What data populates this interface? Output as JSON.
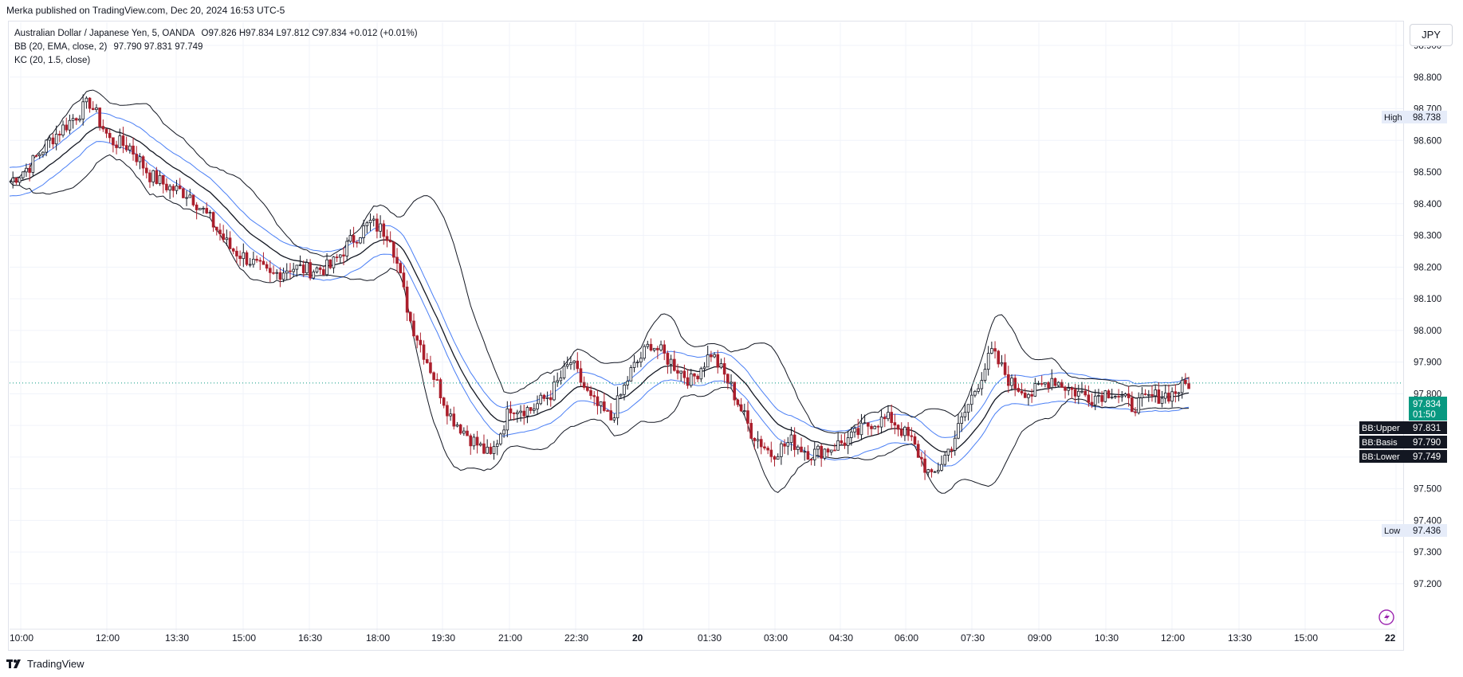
{
  "header": {
    "published": "Merka published on TradingView.com, Dec 20, 2024 16:53 UTC-5"
  },
  "legend": {
    "symbol": "Australian Dollar / Japanese Yen, 5, OANDA",
    "ohlc": "O97.826 H97.834 L97.812 C97.834 +0.012 (+0.01%)",
    "bb_label": "BB (20, EMA, close, 2)",
    "bb_values": "97.790  97.831  97.749",
    "kc_label": "KC (20, 1.5, close)"
  },
  "currency_button": "JPY",
  "footer": {
    "brand": "TradingView"
  },
  "colors": {
    "up": "#131722",
    "down": "#ab1f2c",
    "bb": "#131722",
    "kc": "#4a7ff5",
    "last_price": "#089981",
    "high_low_bg": "#e6ecf9"
  },
  "icons": {
    "lightning": "lightning-icon"
  },
  "chart_data": {
    "type": "candlestick",
    "title": "Australian Dollar / Japanese Yen, 5, OANDA",
    "ylim": [
      97.15,
      98.98
    ],
    "y_ticks": [
      "98.900",
      "98.800",
      "98.700",
      "98.600",
      "98.500",
      "98.400",
      "98.300",
      "98.200",
      "98.100",
      "98.000",
      "97.900",
      "97.800",
      "97.700",
      "97.600",
      "97.500",
      "97.400",
      "97.300",
      "97.200"
    ],
    "x_ticks": [
      "10:00",
      "12:00",
      "13:30",
      "15:00",
      "16:30",
      "18:00",
      "19:30",
      "21:00",
      "22:30",
      "20",
      "01:30",
      "03:00",
      "04:30",
      "06:00",
      "07:30",
      "09:00",
      "10:30",
      "12:00",
      "13:30",
      "15:00",
      "22"
    ],
    "grid": true,
    "high": {
      "label": "High",
      "value": "98.738"
    },
    "low": {
      "label": "Low",
      "value": "97.436"
    },
    "last_price": {
      "value": "97.834",
      "countdown": "01:50"
    },
    "bb_tags": [
      {
        "label": "BB:Upper",
        "value": "97.831"
      },
      {
        "label": "BB:Basis",
        "value": "97.790"
      },
      {
        "label": "BB:Lower",
        "value": "97.749"
      }
    ],
    "close_path": [
      [
        0,
        98.47
      ],
      [
        6,
        98.52
      ],
      [
        12,
        98.6
      ],
      [
        18,
        98.66
      ],
      [
        24,
        98.72
      ],
      [
        30,
        98.6
      ],
      [
        36,
        98.58
      ],
      [
        42,
        98.49
      ],
      [
        48,
        98.45
      ],
      [
        54,
        98.43
      ],
      [
        60,
        98.35
      ],
      [
        66,
        98.26
      ],
      [
        72,
        98.22
      ],
      [
        78,
        98.17
      ],
      [
        84,
        98.2
      ],
      [
        90,
        98.19
      ],
      [
        96,
        98.2
      ],
      [
        102,
        98.28
      ],
      [
        108,
        98.34
      ],
      [
        114,
        98.3
      ],
      [
        120,
        98.03
      ],
      [
        126,
        97.88
      ],
      [
        132,
        97.73
      ],
      [
        138,
        97.66
      ],
      [
        144,
        97.6
      ],
      [
        150,
        97.76
      ],
      [
        156,
        97.75
      ],
      [
        162,
        97.8
      ],
      [
        168,
        97.9
      ],
      [
        174,
        97.78
      ],
      [
        180,
        97.72
      ],
      [
        186,
        97.87
      ],
      [
        192,
        97.96
      ],
      [
        198,
        97.9
      ],
      [
        204,
        97.84
      ],
      [
        210,
        97.93
      ],
      [
        216,
        97.82
      ],
      [
        222,
        97.68
      ],
      [
        228,
        97.61
      ],
      [
        234,
        97.65
      ],
      [
        240,
        97.61
      ],
      [
        246,
        97.63
      ],
      [
        252,
        97.66
      ],
      [
        258,
        97.71
      ],
      [
        264,
        97.72
      ],
      [
        270,
        97.65
      ],
      [
        276,
        97.53
      ],
      [
        282,
        97.64
      ],
      [
        288,
        97.79
      ],
      [
        294,
        97.93
      ],
      [
        300,
        97.83
      ],
      [
        306,
        97.8
      ],
      [
        312,
        97.85
      ],
      [
        318,
        97.81
      ],
      [
        324,
        97.79
      ],
      [
        330,
        97.81
      ],
      [
        336,
        97.76
      ],
      [
        342,
        97.79
      ],
      [
        348,
        97.8
      ],
      [
        353,
        97.834
      ]
    ],
    "n_bars": 353
  }
}
